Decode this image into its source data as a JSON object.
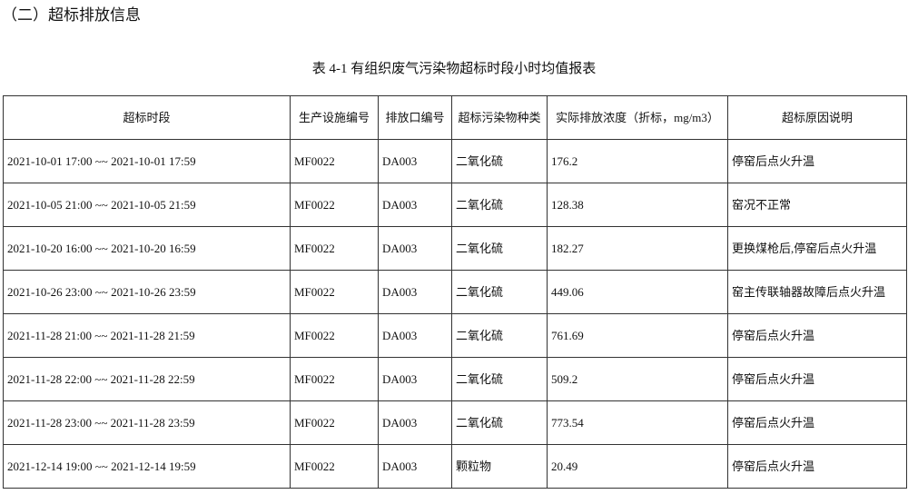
{
  "section_title": "（二）超标排放信息",
  "table_caption": "表 4-1 有组织废气污染物超标时段小时均值报表",
  "table": {
    "headers": [
      "超标时段",
      "生产设施编号",
      "排放口编号",
      "超标污染物种类",
      "实际排放浓度（折标，mg/m3）",
      "超标原因说明"
    ],
    "rows": [
      [
        "2021-10-01 17:00 ~~ 2021-10-01 17:59",
        "MF0022",
        "DA003",
        "二氧化硫",
        "176.2",
        "停窑后点火升温"
      ],
      [
        "2021-10-05 21:00 ~~ 2021-10-05 21:59",
        "MF0022",
        "DA003",
        "二氧化硫",
        "128.38",
        "窑况不正常"
      ],
      [
        "2021-10-20 16:00 ~~ 2021-10-20 16:59",
        "MF0022",
        "DA003",
        "二氧化硫",
        "182.27",
        "更换煤枪后,停窑后点火升温"
      ],
      [
        "2021-10-26 23:00 ~~ 2021-10-26 23:59",
        "MF0022",
        "DA003",
        "二氧化硫",
        "449.06",
        "窑主传联轴器故障后点火升温"
      ],
      [
        "2021-11-28 21:00 ~~ 2021-11-28 21:59",
        "MF0022",
        "DA003",
        "二氧化硫",
        "761.69",
        "停窑后点火升温"
      ],
      [
        "2021-11-28 22:00 ~~ 2021-11-28 22:59",
        "MF0022",
        "DA003",
        "二氧化硫",
        "509.2",
        "停窑后点火升温"
      ],
      [
        "2021-11-28 23:00 ~~ 2021-11-28 23:59",
        "MF0022",
        "DA003",
        "二氧化硫",
        "773.54",
        "停窑后点火升温"
      ],
      [
        "2021-12-14 19:00 ~~ 2021-12-14 19:59",
        "MF0022",
        "DA003",
        "颗粒物",
        "20.49",
        "停窑后点火升温"
      ]
    ]
  }
}
